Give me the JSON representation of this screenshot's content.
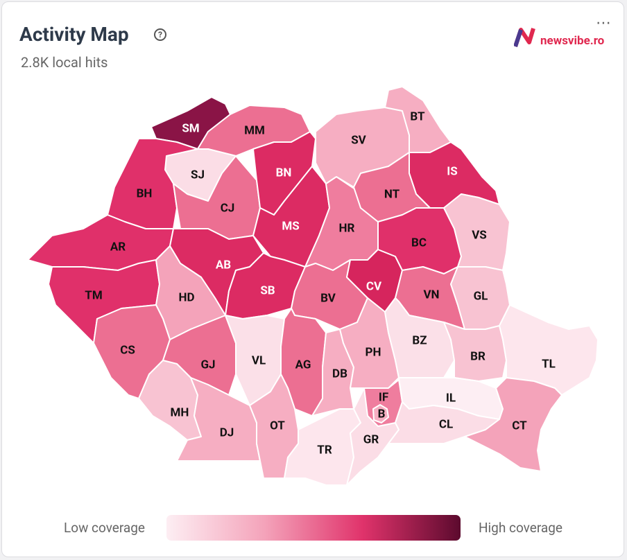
{
  "header": {
    "title": "Activity Map",
    "subtitle": "2.8K local hits",
    "brand": "newsvibe.ro"
  },
  "legend": {
    "low_label": "Low coverage",
    "high_label": "High coverage",
    "colors": [
      "#fdeef3",
      "#f4a3ba",
      "#e0336b",
      "#5c0a2e"
    ]
  },
  "counties": [
    {
      "code": "SM",
      "color": "#8a1446"
    },
    {
      "code": "MM",
      "color": "#ec6f92"
    },
    {
      "code": "SJ",
      "color": "#fbdde6"
    },
    {
      "code": "BH",
      "color": "#e0306a"
    },
    {
      "code": "CJ",
      "color": "#ec6f92"
    },
    {
      "code": "BN",
      "color": "#dc2b63"
    },
    {
      "code": "AR",
      "color": "#e0306a"
    },
    {
      "code": "MS",
      "color": "#dc2b63"
    },
    {
      "code": "AB",
      "color": "#dc2b63"
    },
    {
      "code": "TM",
      "color": "#e0306a"
    },
    {
      "code": "HD",
      "color": "#f4a3ba"
    },
    {
      "code": "SB",
      "color": "#dc2b63"
    },
    {
      "code": "HR",
      "color": "#ef7d9e"
    },
    {
      "code": "BV",
      "color": "#ec6f92"
    },
    {
      "code": "CV",
      "color": "#d6255d"
    },
    {
      "code": "SV",
      "color": "#f6aec2"
    },
    {
      "code": "BT",
      "color": "#f6aec2"
    },
    {
      "code": "IS",
      "color": "#dc2b63"
    },
    {
      "code": "NT",
      "color": "#ec6f92"
    },
    {
      "code": "BC",
      "color": "#e0306a"
    },
    {
      "code": "VS",
      "color": "#f8c3d2"
    },
    {
      "code": "VN",
      "color": "#ec6f92"
    },
    {
      "code": "GL",
      "color": "#f8c3d2"
    },
    {
      "code": "CS",
      "color": "#ec6f92"
    },
    {
      "code": "GJ",
      "color": "#ec6f92"
    },
    {
      "code": "VL",
      "color": "#fbe0e8"
    },
    {
      "code": "AG",
      "color": "#ec6f92"
    },
    {
      "code": "DB",
      "color": "#f6aec2"
    },
    {
      "code": "PH",
      "color": "#f6aec2"
    },
    {
      "code": "BZ",
      "color": "#fbe0e8"
    },
    {
      "code": "BR",
      "color": "#f8c3d2"
    },
    {
      "code": "TL",
      "color": "#fde6ed"
    },
    {
      "code": "MH",
      "color": "#f8c3d2"
    },
    {
      "code": "DJ",
      "color": "#f6aec2"
    },
    {
      "code": "OT",
      "color": "#f6aec2"
    },
    {
      "code": "TR",
      "color": "#fde6ed"
    },
    {
      "code": "GR",
      "color": "#fbdde6"
    },
    {
      "code": "IF",
      "color": "#ef7d9e"
    },
    {
      "code": "B",
      "color": "#f6aec2"
    },
    {
      "code": "IL",
      "color": "#fdeef3"
    },
    {
      "code": "CL",
      "color": "#fbdde6"
    },
    {
      "code": "CT",
      "color": "#f4a3ba"
    }
  ]
}
